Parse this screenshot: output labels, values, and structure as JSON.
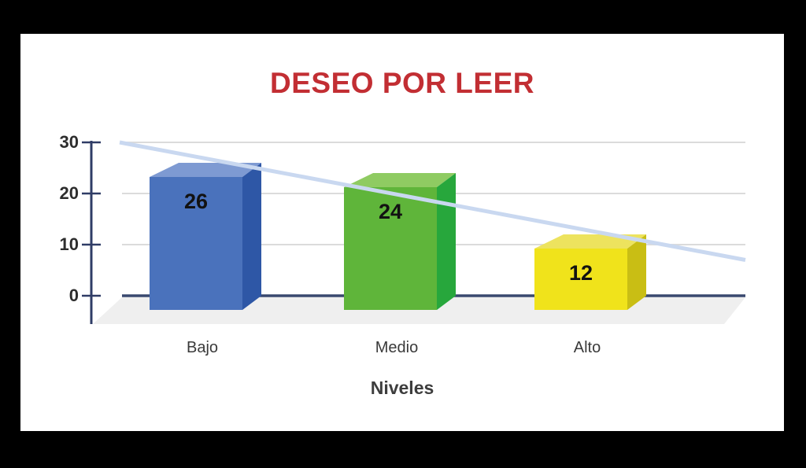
{
  "chart_data": {
    "type": "bar",
    "bar_style": "3d",
    "title": "DESEO POR LEER",
    "title_color": "#C22E33",
    "xlabel": "Niveles",
    "ylabel": "",
    "categories": [
      "Bajo",
      "Medio",
      "Alto"
    ],
    "values": [
      26,
      24,
      12
    ],
    "yticks": [
      30,
      20,
      10,
      0
    ],
    "ylim": [
      0,
      30
    ],
    "grid": true,
    "legend": false,
    "bar_colors": [
      {
        "name": "blue",
        "front": "#4A72BC",
        "top": "#7E9AD2",
        "side": "#2E57A6"
      },
      {
        "name": "green",
        "front": "#5FB53A",
        "top": "#8FCB62",
        "side": "#27A73C"
      },
      {
        "name": "yellow",
        "front": "#F0E31B",
        "top": "#EDE35E",
        "side": "#C9BE14"
      }
    ],
    "trendline": {
      "start_value": 30,
      "end_value": 7,
      "color": "#C9D8F0"
    },
    "axis_color": "#2F3C66",
    "baseline_color": "#39486F",
    "grid_color": "#DBDBDB",
    "floor_color": "#EFEFEF",
    "background_color": "#FFFFFF",
    "letterbox_color": "#000000"
  }
}
